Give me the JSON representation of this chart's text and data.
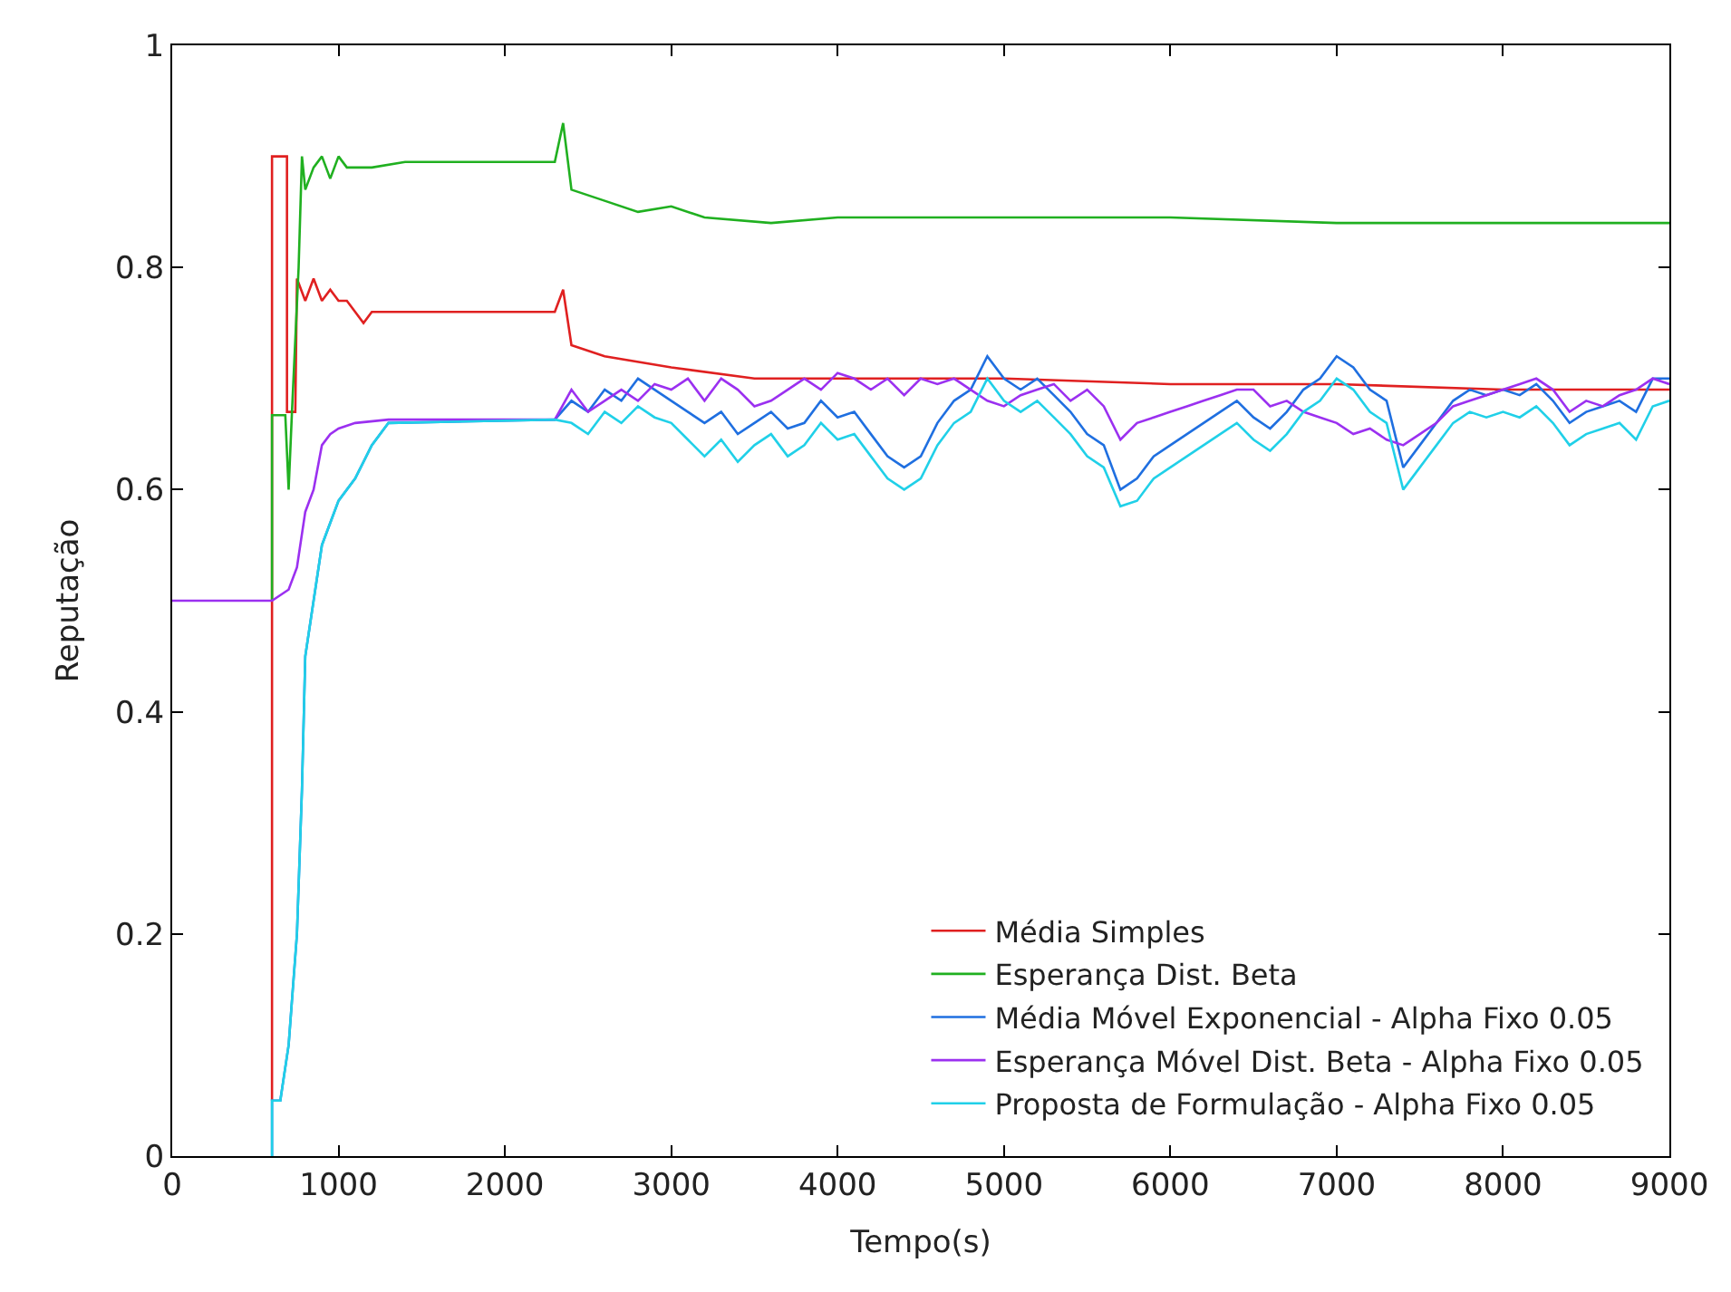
{
  "chart_data": {
    "type": "line",
    "xlabel": "Tempo(s)",
    "ylabel": "Reputação",
    "xlim": [
      0,
      9000
    ],
    "ylim": [
      0,
      1
    ],
    "xticks": [
      0,
      1000,
      2000,
      3000,
      4000,
      5000,
      6000,
      7000,
      8000,
      9000
    ],
    "yticks": [
      0,
      0.2,
      0.4,
      0.6,
      0.8,
      1
    ],
    "grid": false,
    "legend": "bottom right",
    "marker": "none",
    "line_style": "solid",
    "series": [
      {
        "name": "Média Simples",
        "color": "#e02020",
        "x": [
          600,
          600,
          690,
          690,
          740,
          750,
          800,
          850,
          900,
          950,
          1000,
          1050,
          1100,
          1150,
          1200,
          2300,
          2350,
          2400,
          2600,
          3000,
          3500,
          4000,
          5000,
          6000,
          7000,
          8000,
          9000
        ],
        "values": [
          0.05,
          0.9,
          0.9,
          0.67,
          0.67,
          0.79,
          0.77,
          0.79,
          0.77,
          0.78,
          0.77,
          0.77,
          0.76,
          0.75,
          0.76,
          0.76,
          0.78,
          0.73,
          0.72,
          0.71,
          0.7,
          0.7,
          0.7,
          0.695,
          0.695,
          0.69,
          0.69
        ]
      },
      {
        "name": "Esperança Dist. Beta",
        "color": "#20b020",
        "x": [
          600,
          600,
          680,
          700,
          720,
          760,
          780,
          800,
          850,
          900,
          950,
          1000,
          1050,
          1100,
          1200,
          1400,
          2300,
          2350,
          2400,
          2600,
          2800,
          3000,
          3200,
          3600,
          4000,
          4500,
          5000,
          6000,
          7000,
          7500,
          8000,
          9000
        ],
        "values": [
          0.5,
          0.667,
          0.667,
          0.6,
          0.67,
          0.8,
          0.9,
          0.87,
          0.89,
          0.9,
          0.88,
          0.9,
          0.89,
          0.89,
          0.89,
          0.895,
          0.895,
          0.93,
          0.87,
          0.86,
          0.85,
          0.855,
          0.845,
          0.84,
          0.845,
          0.845,
          0.845,
          0.845,
          0.84,
          0.84,
          0.84,
          0.84
        ]
      },
      {
        "name": "Média Móvel Exponencial - Alpha Fixo 0.05",
        "color": "#1f6fe0",
        "x": [
          600,
          600,
          650,
          700,
          750,
          780,
          800,
          850,
          900,
          1000,
          1100,
          1200,
          1300,
          2300,
          2400,
          2500,
          2600,
          2700,
          2800,
          2900,
          3000,
          3100,
          3200,
          3300,
          3400,
          3500,
          3600,
          3700,
          3800,
          3900,
          4000,
          4100,
          4200,
          4300,
          4400,
          4500,
          4600,
          4700,
          4800,
          4900,
          5000,
          5100,
          5200,
          5300,
          5400,
          5500,
          5600,
          5700,
          5800,
          5900,
          6000,
          6100,
          6200,
          6300,
          6400,
          6500,
          6600,
          6700,
          6800,
          6900,
          7000,
          7100,
          7200,
          7300,
          7400,
          7500,
          7600,
          7700,
          7800,
          7900,
          8000,
          8100,
          8200,
          8300,
          8400,
          8500,
          8600,
          8700,
          8800,
          8900,
          9000
        ],
        "values": [
          0,
          0.05,
          0.05,
          0.1,
          0.2,
          0.33,
          0.45,
          0.5,
          0.55,
          0.59,
          0.61,
          0.64,
          0.66,
          0.663,
          0.68,
          0.67,
          0.69,
          0.68,
          0.7,
          0.69,
          0.68,
          0.67,
          0.66,
          0.67,
          0.65,
          0.66,
          0.67,
          0.655,
          0.66,
          0.68,
          0.665,
          0.67,
          0.65,
          0.63,
          0.62,
          0.63,
          0.66,
          0.68,
          0.69,
          0.72,
          0.7,
          0.69,
          0.7,
          0.685,
          0.67,
          0.65,
          0.64,
          0.6,
          0.61,
          0.63,
          0.64,
          0.65,
          0.66,
          0.67,
          0.68,
          0.665,
          0.655,
          0.67,
          0.69,
          0.7,
          0.72,
          0.71,
          0.69,
          0.68,
          0.62,
          0.64,
          0.66,
          0.68,
          0.69,
          0.685,
          0.69,
          0.685,
          0.695,
          0.68,
          0.66,
          0.67,
          0.675,
          0.68,
          0.67,
          0.7,
          0.7
        ]
      },
      {
        "name": "Esperança Móvel Dist. Beta - Alpha Fixo 0.05",
        "color": "#9b30f0",
        "x": [
          0,
          600,
          700,
          750,
          800,
          850,
          900,
          950,
          1000,
          1100,
          1300,
          2300,
          2400,
          2500,
          2600,
          2700,
          2800,
          2900,
          3000,
          3100,
          3200,
          3300,
          3400,
          3500,
          3600,
          3700,
          3800,
          3900,
          4000,
          4100,
          4200,
          4300,
          4400,
          4500,
          4600,
          4700,
          4800,
          4900,
          5000,
          5100,
          5200,
          5300,
          5400,
          5500,
          5600,
          5700,
          5800,
          5900,
          6000,
          6100,
          6200,
          6300,
          6400,
          6500,
          6600,
          6700,
          6800,
          6900,
          7000,
          7100,
          7200,
          7300,
          7400,
          7500,
          7600,
          7700,
          7800,
          7900,
          8000,
          8100,
          8200,
          8300,
          8400,
          8500,
          8600,
          8700,
          8800,
          8900,
          9000
        ],
        "values": [
          0.5,
          0.5,
          0.51,
          0.53,
          0.58,
          0.6,
          0.64,
          0.65,
          0.655,
          0.66,
          0.663,
          0.663,
          0.69,
          0.67,
          0.68,
          0.69,
          0.68,
          0.695,
          0.69,
          0.7,
          0.68,
          0.7,
          0.69,
          0.675,
          0.68,
          0.69,
          0.7,
          0.69,
          0.705,
          0.7,
          0.69,
          0.7,
          0.685,
          0.7,
          0.695,
          0.7,
          0.69,
          0.68,
          0.675,
          0.685,
          0.69,
          0.695,
          0.68,
          0.69,
          0.675,
          0.645,
          0.66,
          0.665,
          0.67,
          0.675,
          0.68,
          0.685,
          0.69,
          0.69,
          0.675,
          0.68,
          0.67,
          0.665,
          0.66,
          0.65,
          0.655,
          0.645,
          0.64,
          0.65,
          0.66,
          0.675,
          0.68,
          0.685,
          0.69,
          0.695,
          0.7,
          0.69,
          0.67,
          0.68,
          0.675,
          0.685,
          0.69,
          0.7,
          0.695
        ]
      },
      {
        "name": "Proposta de Formulação - Alpha Fixo 0.05",
        "color": "#20d0e8",
        "x": [
          600,
          600,
          650,
          700,
          750,
          780,
          800,
          850,
          900,
          1000,
          1100,
          1200,
          1300,
          2300,
          2400,
          2500,
          2600,
          2700,
          2800,
          2900,
          3000,
          3100,
          3200,
          3300,
          3400,
          3500,
          3600,
          3700,
          3800,
          3900,
          4000,
          4100,
          4200,
          4300,
          4400,
          4500,
          4600,
          4700,
          4800,
          4900,
          5000,
          5100,
          5200,
          5300,
          5400,
          5500,
          5600,
          5700,
          5800,
          5900,
          6000,
          6100,
          6200,
          6300,
          6400,
          6500,
          6600,
          6700,
          6800,
          6900,
          7000,
          7100,
          7200,
          7300,
          7400,
          7500,
          7600,
          7700,
          7800,
          7900,
          8000,
          8100,
          8200,
          8300,
          8400,
          8500,
          8600,
          8700,
          8800,
          8900,
          9000
        ],
        "values": [
          0,
          0.05,
          0.05,
          0.1,
          0.2,
          0.33,
          0.45,
          0.5,
          0.55,
          0.59,
          0.61,
          0.64,
          0.66,
          0.663,
          0.66,
          0.65,
          0.67,
          0.66,
          0.675,
          0.665,
          0.66,
          0.645,
          0.63,
          0.645,
          0.625,
          0.64,
          0.65,
          0.63,
          0.64,
          0.66,
          0.645,
          0.65,
          0.63,
          0.61,
          0.6,
          0.61,
          0.64,
          0.66,
          0.67,
          0.7,
          0.68,
          0.67,
          0.68,
          0.665,
          0.65,
          0.63,
          0.62,
          0.585,
          0.59,
          0.61,
          0.62,
          0.63,
          0.64,
          0.65,
          0.66,
          0.645,
          0.635,
          0.65,
          0.67,
          0.68,
          0.7,
          0.69,
          0.67,
          0.66,
          0.6,
          0.62,
          0.64,
          0.66,
          0.67,
          0.665,
          0.67,
          0.665,
          0.675,
          0.66,
          0.64,
          0.65,
          0.655,
          0.66,
          0.645,
          0.675,
          0.68
        ]
      }
    ]
  }
}
